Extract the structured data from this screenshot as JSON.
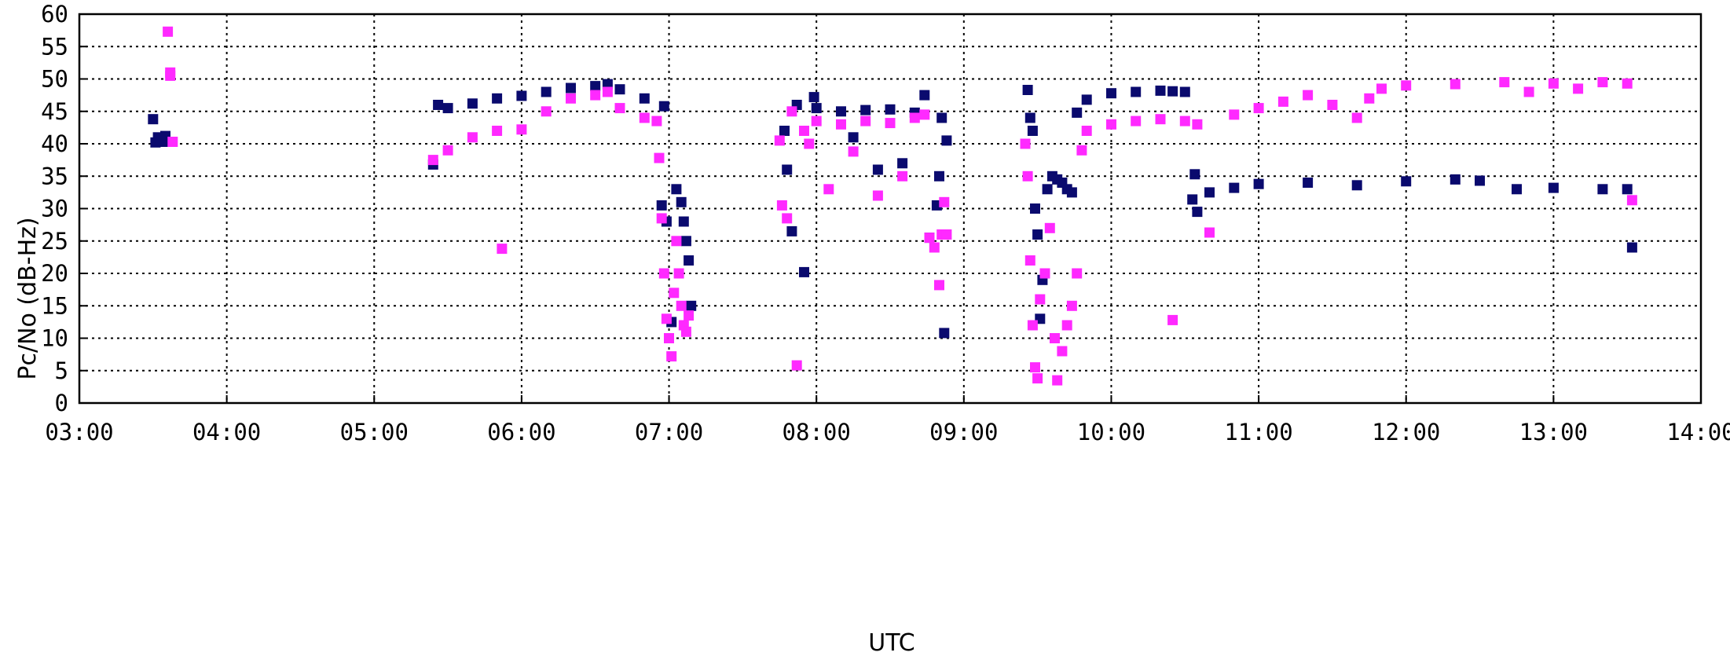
{
  "chart_data": {
    "type": "scatter",
    "title": "",
    "xlabel": "UTC",
    "ylabel": "Pc/No  (dB-Hz)",
    "xlim": [
      "03:00",
      "14:00"
    ],
    "ylim": [
      0,
      60
    ],
    "x_ticks": [
      "03:00",
      "04:00",
      "05:00",
      "06:00",
      "07:00",
      "08:00",
      "09:00",
      "10:00",
      "11:00",
      "12:00",
      "13:00",
      "14:00"
    ],
    "y_ticks": [
      "0",
      "5",
      "10",
      "15",
      "20",
      "25",
      "30",
      "35",
      "40",
      "45",
      "50",
      "55",
      "60"
    ],
    "grid": true,
    "legend": "none",
    "series": [
      {
        "color": "#0a0a6e",
        "x": [
          "03:30",
          "03:31",
          "03:32",
          "03:33",
          "03:34",
          "03:35",
          "05:24",
          "05:26",
          "05:30",
          "05:40",
          "05:50",
          "06:00",
          "06:10",
          "06:20",
          "06:30",
          "06:35",
          "06:40",
          "06:50",
          "06:58",
          "06:57",
          "06:59",
          "07:01",
          "07:03",
          "07:05",
          "07:06",
          "07:07",
          "07:08",
          "07:09",
          "07:47",
          "07:48",
          "07:50",
          "07:52",
          "07:55",
          "07:59",
          "08:00",
          "08:10",
          "08:15",
          "08:20",
          "08:25",
          "08:30",
          "08:35",
          "08:40",
          "08:44",
          "08:46",
          "08:49",
          "08:50",
          "08:51",
          "08:52",
          "08:53",
          "09:26",
          "09:27",
          "09:28",
          "09:29",
          "09:30",
          "09:31",
          "09:32",
          "09:34",
          "09:36",
          "09:38",
          "09:40",
          "09:42",
          "09:44",
          "09:46",
          "09:50",
          "10:00",
          "10:10",
          "10:20",
          "10:30",
          "10:33",
          "10:25",
          "10:34",
          "10:35",
          "10:40",
          "10:50",
          "11:00",
          "11:20",
          "11:40",
          "12:00",
          "12:20",
          "12:30",
          "12:45",
          "13:00",
          "13:20",
          "13:30",
          "13:32"
        ],
        "y": [
          43.8,
          40.2,
          41.0,
          40.7,
          40.3,
          41.2,
          36.8,
          46.0,
          45.5,
          46.2,
          47.0,
          47.4,
          48.0,
          48.6,
          48.9,
          49.2,
          48.4,
          47.0,
          45.8,
          30.5,
          28.0,
          12.5,
          33.0,
          31.0,
          28.0,
          25.0,
          22.0,
          15.0,
          42.0,
          36.0,
          26.5,
          46.0,
          20.2,
          47.2,
          45.5,
          45.0,
          41.0,
          45.2,
          36.0,
          45.3,
          37.0,
          44.8,
          47.5,
          25.5,
          30.5,
          35.0,
          44.0,
          10.8,
          40.5,
          48.3,
          44.0,
          42.0,
          30.0,
          26.0,
          13.0,
          19.0,
          33.0,
          35.0,
          34.5,
          34.0,
          33.0,
          32.5,
          44.8,
          46.8,
          47.8,
          48.0,
          48.2,
          48.0,
          31.4,
          48.1,
          35.3,
          29.5,
          32.5,
          33.2,
          33.8,
          34.0,
          33.6,
          34.2,
          34.5,
          34.3,
          33.0,
          33.2,
          33.0,
          33.0,
          24.0
        ],
        "mark": "square"
      },
      {
        "color": "#ff29ff",
        "x": [
          "03:36",
          "03:37",
          "03:37",
          "03:38",
          "05:24",
          "05:30",
          "05:40",
          "05:50",
          "05:52",
          "06:00",
          "06:10",
          "06:20",
          "06:30",
          "06:35",
          "06:40",
          "06:50",
          "06:55",
          "06:56",
          "06:57",
          "06:58",
          "06:59",
          "07:00",
          "07:01",
          "07:02",
          "07:03",
          "07:04",
          "07:05",
          "07:06",
          "07:07",
          "07:08",
          "07:45",
          "07:46",
          "07:48",
          "07:50",
          "07:52",
          "07:55",
          "07:57",
          "08:00",
          "08:05",
          "08:10",
          "08:15",
          "08:20",
          "08:25",
          "08:30",
          "08:35",
          "08:40",
          "08:44",
          "08:46",
          "08:48",
          "08:50",
          "08:51",
          "08:52",
          "08:53",
          "09:25",
          "09:26",
          "09:27",
          "09:28",
          "09:29",
          "09:30",
          "09:31",
          "09:33",
          "09:35",
          "09:37",
          "09:38",
          "09:40",
          "09:42",
          "09:44",
          "09:46",
          "09:48",
          "09:50",
          "10:00",
          "10:10",
          "10:20",
          "10:30",
          "10:25",
          "10:35",
          "10:40",
          "10:50",
          "11:00",
          "11:10",
          "11:20",
          "11:30",
          "11:40",
          "11:45",
          "11:50",
          "12:00",
          "12:20",
          "12:40",
          "12:50",
          "13:00",
          "13:10",
          "13:20",
          "13:30",
          "13:32"
        ],
        "y": [
          57.3,
          51.0,
          50.5,
          40.3,
          37.5,
          39.0,
          41.0,
          42.0,
          23.8,
          42.2,
          45.0,
          47.0,
          47.5,
          48.0,
          45.5,
          44.0,
          43.5,
          37.8,
          28.5,
          20.0,
          13.0,
          10.0,
          7.2,
          17.0,
          25.0,
          20.0,
          15.0,
          12.0,
          11.0,
          13.5,
          40.5,
          30.5,
          28.5,
          45.0,
          5.8,
          42.0,
          40.0,
          43.5,
          33.0,
          43.0,
          38.8,
          43.5,
          32.0,
          43.2,
          35.0,
          44.0,
          44.5,
          25.5,
          24.0,
          18.2,
          26.0,
          31.0,
          26.0,
          40.0,
          35.0,
          22.0,
          12.0,
          5.5,
          3.8,
          16.0,
          20.0,
          27.0,
          10.0,
          3.5,
          8.0,
          12.0,
          15.0,
          20.0,
          39.0,
          42.0,
          43.0,
          43.5,
          43.8,
          43.5,
          12.8,
          43.0,
          26.3,
          44.5,
          45.5,
          46.5,
          47.5,
          46.0,
          44.0,
          47.0,
          48.5,
          49.0,
          49.2,
          49.5,
          48.0,
          49.3,
          48.5,
          49.5,
          49.3,
          31.3
        ]
      }
    ]
  }
}
